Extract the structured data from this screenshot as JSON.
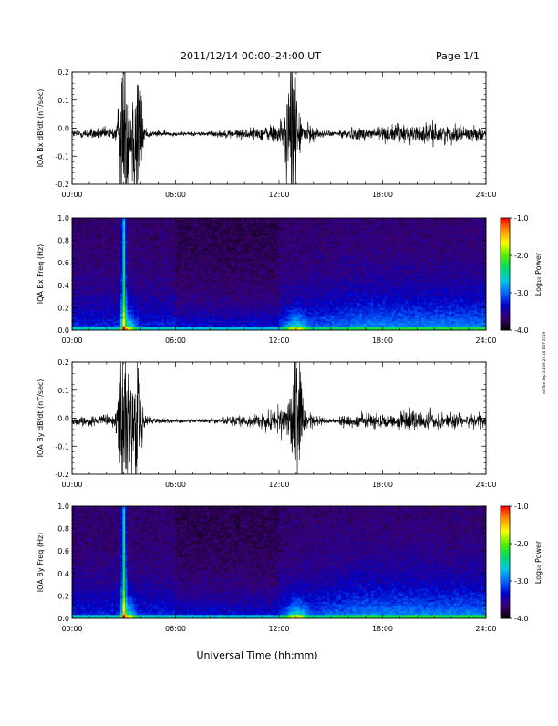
{
  "header": {
    "title": "2011/12/14  00:00–24:00 UT",
    "page": "Page 1/1"
  },
  "footer": {
    "xlabel": "Universal Time (hh:mm)",
    "side_stamp": "rel Tue Sep 24 09:25:16 EDT 2019"
  },
  "colors": {
    "colorbar": [
      "#000000",
      "#3a0070",
      "#0000c8",
      "#0064ff",
      "#00c8e6",
      "#00dc64",
      "#50f000",
      "#ffff00",
      "#ff9600",
      "#ff0000"
    ],
    "trace": "#000000"
  },
  "chart_data": [
    {
      "type": "line",
      "ylabel": "IQA Bx dB/dt (nT/sec)",
      "xlim": [
        "00:00",
        "24:00"
      ],
      "ylim": [
        -0.2,
        0.2
      ],
      "x_ticks": [
        "00:00",
        "06:00",
        "12:00",
        "18:00",
        "24:00"
      ],
      "y_ticks": [
        "-0.2",
        "-0.1",
        "0.0",
        "0.1",
        "0.2"
      ],
      "baseline": -0.02,
      "bursts": [
        {
          "center": "03:00",
          "peak": 0.2
        },
        {
          "center": "03:45",
          "peak": 0.2
        },
        {
          "center": "12:45",
          "peak": 0.2
        }
      ]
    },
    {
      "type": "heatmap",
      "ylabel": "IQA Bx Freq (Hz)",
      "xlim": [
        "00:00",
        "24:00"
      ],
      "ylim": [
        0.0,
        1.0
      ],
      "x_ticks": [
        "00:00",
        "06:00",
        "12:00",
        "18:00",
        "24:00"
      ],
      "y_ticks": [
        "0.0",
        "0.2",
        "0.4",
        "0.6",
        "0.8",
        "1.0"
      ],
      "colorbar_label": "Log₁₀ Power",
      "colorbar_range": [
        -4.0,
        -1.0
      ],
      "colorbar_ticks": [
        "-4.0",
        "-3.0",
        "-2.0",
        "-1.0"
      ]
    },
    {
      "type": "line",
      "ylabel": "IQA By dB/dt (nT/sec)",
      "xlim": [
        "00:00",
        "24:00"
      ],
      "ylim": [
        -0.2,
        0.2
      ],
      "x_ticks": [
        "00:00",
        "06:00",
        "12:00",
        "18:00",
        "24:00"
      ],
      "y_ticks": [
        "-0.2",
        "-0.1",
        "0.0",
        "0.1",
        "0.2"
      ],
      "baseline": -0.01,
      "bursts": [
        {
          "center": "03:00",
          "peak": 0.2
        },
        {
          "center": "03:45",
          "peak": 0.2
        },
        {
          "center": "13:00",
          "peak": 0.2
        }
      ]
    },
    {
      "type": "heatmap",
      "ylabel": "IQA By Freq (Hz)",
      "xlim": [
        "00:00",
        "24:00"
      ],
      "ylim": [
        0.0,
        1.0
      ],
      "x_ticks": [
        "00:00",
        "06:00",
        "12:00",
        "18:00",
        "24:00"
      ],
      "y_ticks": [
        "0.0",
        "0.2",
        "0.4",
        "0.6",
        "0.8",
        "1.0"
      ],
      "colorbar_label": "Log₁₀ Power",
      "colorbar_range": [
        -4.0,
        -1.0
      ],
      "colorbar_ticks": [
        "-4.0",
        "-3.0",
        "-2.0",
        "-1.0"
      ]
    }
  ]
}
